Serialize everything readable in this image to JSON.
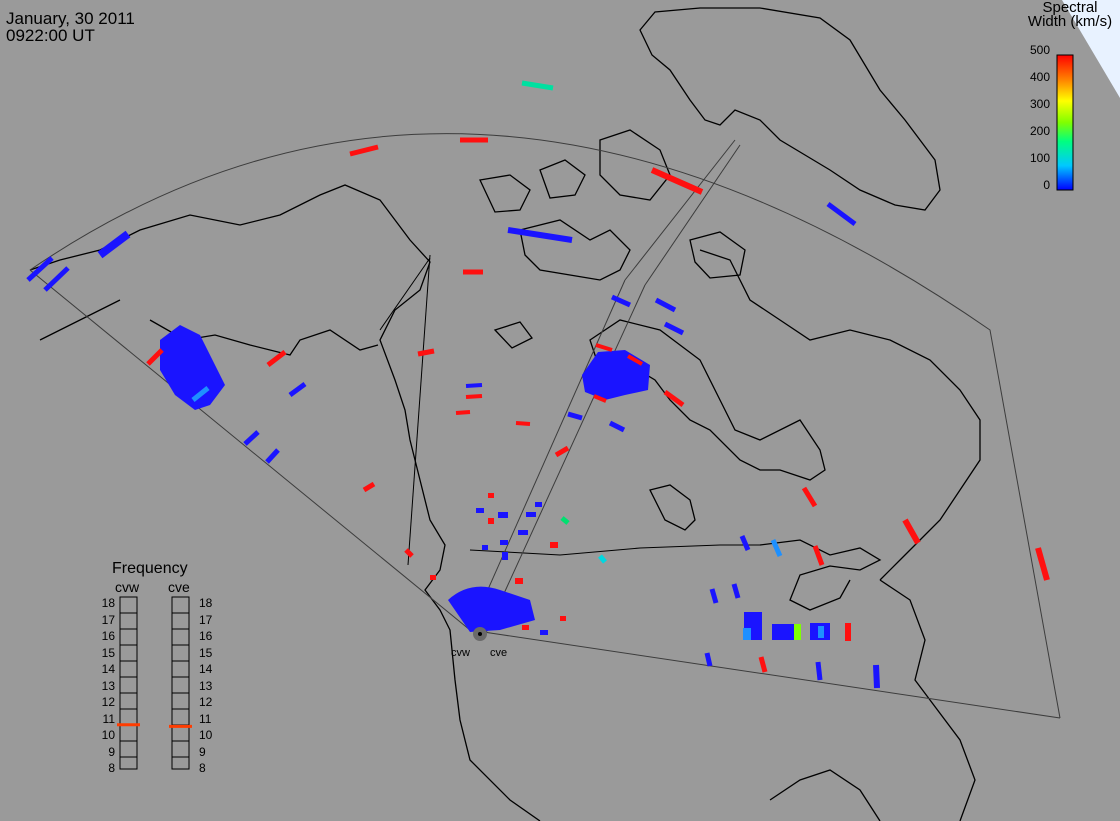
{
  "header": {
    "date": "January, 30 2011",
    "time": "0922:00 UT"
  },
  "color_scale": {
    "title_line1": "Spectral",
    "title_line2": "Width (km/s)",
    "ticks": [
      "500",
      "400",
      "300",
      "200",
      "100",
      "0"
    ],
    "range": [
      0,
      500
    ],
    "colors": [
      "#0000ff",
      "#00c8ff",
      "#00ff80",
      "#80ff00",
      "#ffff00",
      "#ff8000",
      "#ff0000"
    ]
  },
  "frequency_panel": {
    "title": "Frequency",
    "radars": [
      {
        "label": "cvw",
        "value_mhz": 10.7
      },
      {
        "label": "cve",
        "value_mhz": 10.6
      }
    ],
    "levels": [
      "18",
      "17",
      "16",
      "15",
      "14",
      "13",
      "12",
      "11",
      "10",
      "9",
      "8"
    ],
    "marker_color": "#ff3c00"
  },
  "radar_sites": [
    {
      "label": "cvw"
    },
    {
      "label": "cve"
    }
  ],
  "map_colors": {
    "background": "#9a9a9a",
    "outline": "#000000",
    "fov": "#3c3c3c",
    "scatter_low": "#1a14ff",
    "scatter_high": "#ff1010"
  }
}
